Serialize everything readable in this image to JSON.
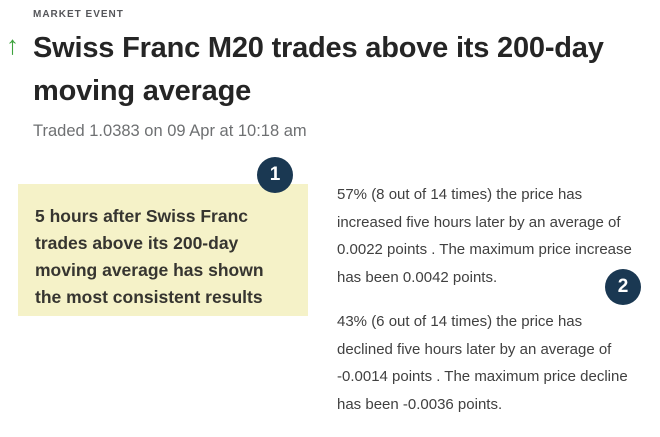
{
  "header": {
    "eyebrow": "MARKET EVENT",
    "direction_arrow": "↑",
    "headline_lines": [
      "Swiss Franc M20 trades above its 200-day",
      "moving average"
    ],
    "traded_line": "Traded 1.0383 on 09 Apr at 10:18 am"
  },
  "callout": {
    "badge": "1",
    "lines": [
      "5 hours after Swiss Franc",
      "trades above its 200-day",
      "moving average has shown",
      "the most consistent results"
    ]
  },
  "stats": {
    "badge": "2",
    "increase": {
      "lines": [
        "57% (8 out of 14 times) the price has",
        "increased five hours later by an average of",
        "0.0022 points . The maximum price increase",
        "has been 0.0042 points."
      ]
    },
    "decline": {
      "lines": [
        "43% (6 out of 14 times) the price has",
        "declined five hours later by an average of",
        "-0.0014 points . The maximum price decline",
        "has been -0.0036 points."
      ]
    }
  },
  "colors": {
    "arrow_green": "#3da23d",
    "callout_yellow": "#f5f2c8",
    "badge_navy": "#1a3852",
    "headline_dark": "#252525",
    "muted_gray": "#6e7072"
  }
}
